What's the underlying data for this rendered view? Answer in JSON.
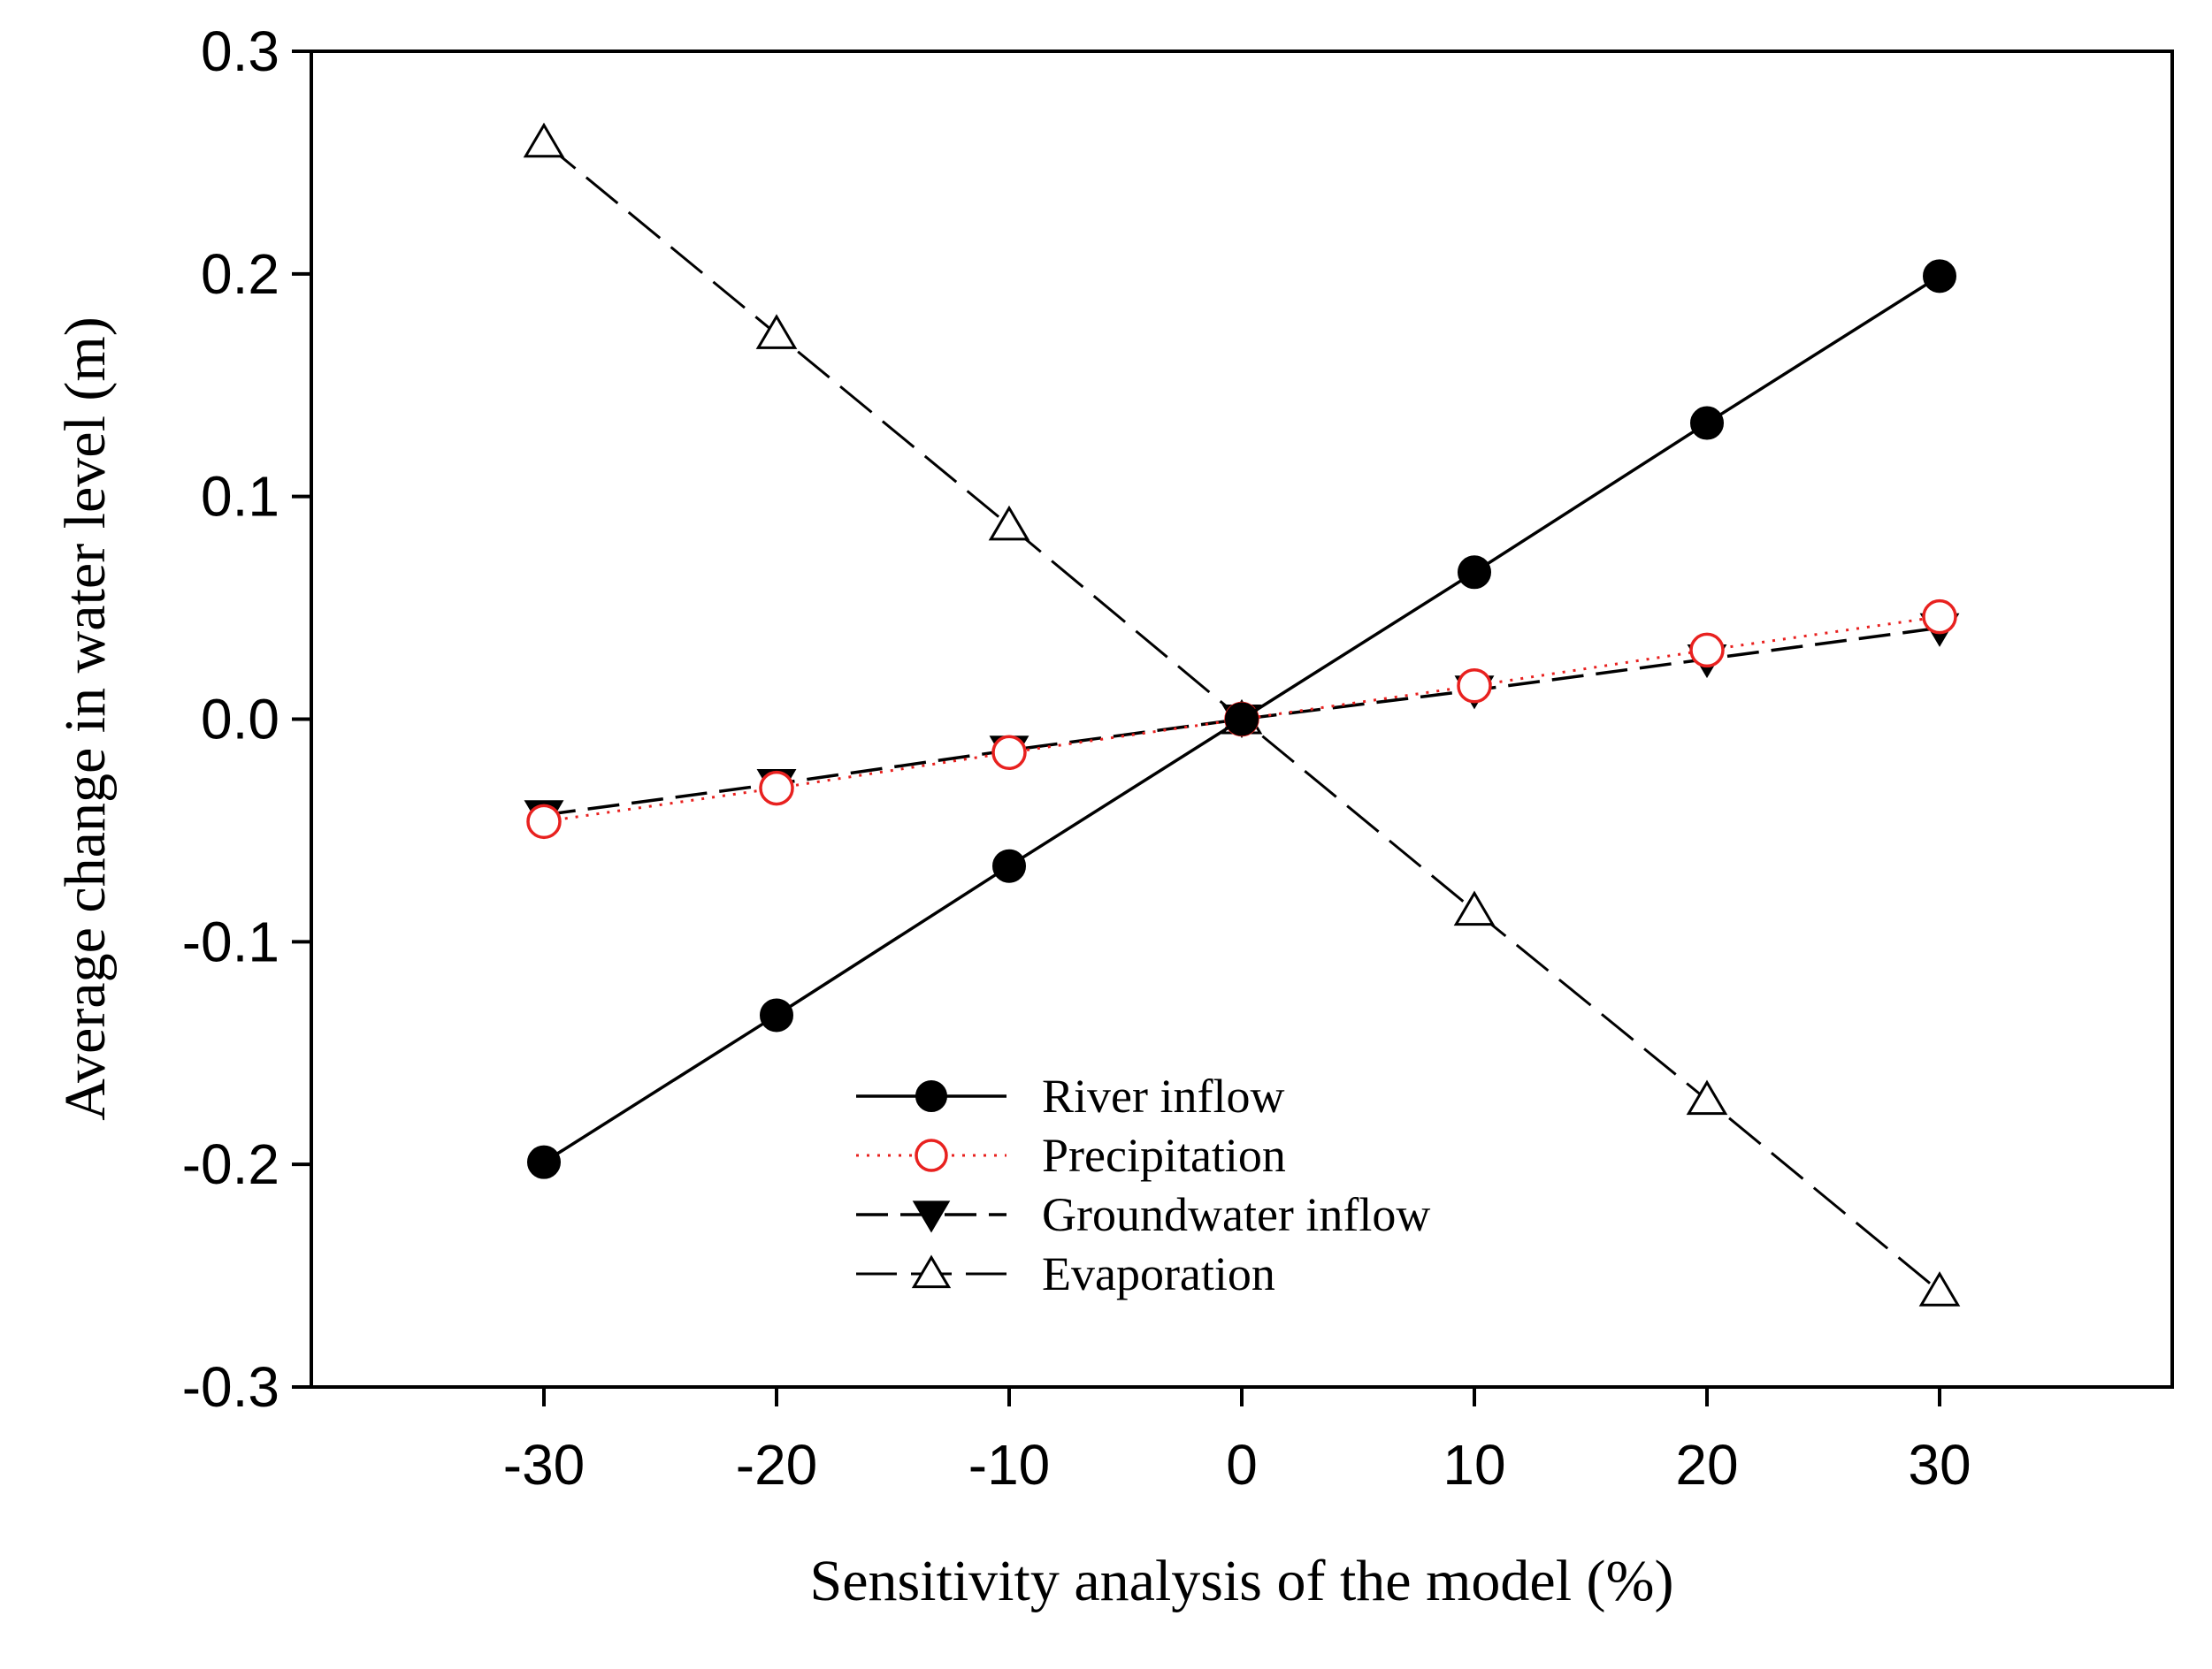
{
  "chart_data": {
    "type": "line",
    "title": "",
    "xlabel": "Sensitivity analysis of the model (%)",
    "ylabel": "Average change in water level (m)",
    "xlim": [
      -40,
      40
    ],
    "ylim": [
      -0.3,
      0.3
    ],
    "x_ticks": [
      -30,
      -20,
      -10,
      0,
      10,
      20,
      30
    ],
    "x_tick_labels": [
      "-30",
      "-20",
      "-10",
      "0",
      "10",
      "20",
      "30"
    ],
    "y_ticks": [
      -0.3,
      -0.2,
      -0.1,
      0.0,
      0.1,
      0.2,
      0.3
    ],
    "y_tick_labels": [
      "-0.3",
      "-0.2",
      "-0.1",
      "0.0",
      "0.1",
      "0.2",
      "0.3"
    ],
    "x": [
      -30,
      -20,
      -10,
      0,
      10,
      20,
      30
    ],
    "grid": false,
    "legend_position": "bottom-center",
    "series": [
      {
        "name": "River inflow",
        "values": [
          -0.199,
          -0.133,
          -0.066,
          0.0,
          0.066,
          0.133,
          0.199
        ],
        "color": "#000000",
        "line_style": "solid",
        "marker": "filled-circle"
      },
      {
        "name": "Precipitation",
        "values": [
          -0.046,
          -0.031,
          -0.015,
          0.0,
          0.015,
          0.031,
          0.046
        ],
        "color": "#e8211f",
        "line_style": "dotted",
        "marker": "open-circle"
      },
      {
        "name": "Groundwater inflow",
        "values": [
          -0.043,
          -0.029,
          -0.014,
          0.0,
          0.013,
          0.027,
          0.041
        ],
        "color": "#000000",
        "line_style": "dashed",
        "marker": "filled-triangle-down"
      },
      {
        "name": "Evaporation",
        "values": [
          0.259,
          0.173,
          0.087,
          0.0,
          -0.086,
          -0.171,
          -0.257
        ],
        "color": "#000000",
        "line_style": "long-dashed",
        "marker": "open-triangle-up"
      }
    ]
  }
}
